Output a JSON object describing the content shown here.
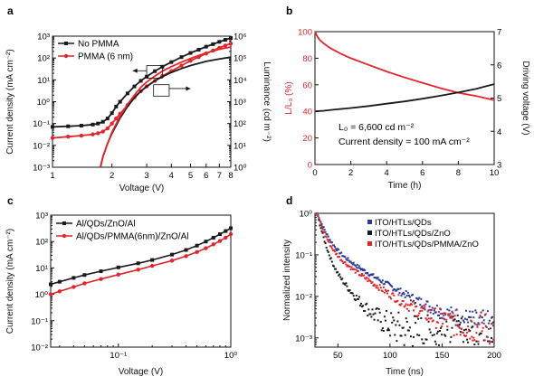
{
  "colors": {
    "black": "#1a1a1a",
    "red": "#e0262b",
    "blue": "#2b3a9a"
  },
  "chart_data": [
    {
      "id": "a",
      "panel_label": "a",
      "type": "line",
      "xlabel": "Voltage (V)",
      "xscale": "log",
      "xlim": [
        1,
        8
      ],
      "x_ticks": [
        "1",
        "2",
        "3",
        "4",
        "5",
        "6",
        "7",
        "8"
      ],
      "ylabel": "Current density (mA cm⁻²)",
      "yscale": "log",
      "ylim": [
        0.001,
        1000
      ],
      "y_ticks": [
        "10⁻³",
        "10⁻²",
        "10⁻¹",
        "10⁰",
        "10¹",
        "10²",
        "10³"
      ],
      "y2label": "Luminance (cd m⁻²)",
      "y2scale": "log",
      "y2lim": [
        1,
        1000000
      ],
      "y2_ticks": [
        "10⁰",
        "10¹",
        "10²",
        "10³",
        "10⁴",
        "10⁵",
        "10⁶"
      ],
      "legend_position": "top-left",
      "series": [
        {
          "name": "No PMMA",
          "color": "#1a1a1a",
          "marker": "square",
          "axis": "left",
          "x": [
            1.0,
            1.2,
            1.4,
            1.6,
            1.7,
            1.8,
            1.9,
            2.0,
            2.1,
            2.2,
            2.4,
            2.6,
            2.8,
            3.0,
            3.3,
            3.6,
            4.0,
            4.5,
            5.0,
            5.5,
            6.0,
            6.5,
            7.0,
            7.5,
            8.0
          ],
          "y": [
            0.07,
            0.075,
            0.08,
            0.09,
            0.1,
            0.12,
            0.17,
            0.3,
            0.6,
            1.0,
            2.4,
            5.0,
            9.0,
            14,
            25,
            40,
            65,
            110,
            170,
            240,
            330,
            430,
            550,
            680,
            820
          ]
        },
        {
          "name": "PMMA (6 nm)",
          "color": "#e0262b",
          "marker": "circle",
          "axis": "left",
          "x": [
            1.0,
            1.2,
            1.4,
            1.6,
            1.7,
            1.8,
            1.9,
            2.0,
            2.1,
            2.2,
            2.4,
            2.6,
            2.8,
            3.0,
            3.3,
            3.6,
            4.0,
            4.5,
            5.0,
            5.5,
            6.0,
            6.5,
            7.0,
            7.5,
            8.0
          ],
          "y": [
            0.022,
            0.025,
            0.028,
            0.032,
            0.036,
            0.043,
            0.06,
            0.1,
            0.17,
            0.28,
            0.7,
            1.6,
            3.0,
            5.0,
            9.0,
            15,
            25,
            45,
            75,
            110,
            160,
            220,
            290,
            370,
            460
          ]
        },
        {
          "name": "No PMMA luminance",
          "color": "#1a1a1a",
          "marker": "none",
          "axis": "right",
          "x": [
            1.75,
            1.8,
            1.9,
            2.0,
            2.2,
            2.4,
            2.6,
            2.8,
            3.0,
            3.3,
            3.6,
            4.0,
            4.5,
            5.0,
            5.5,
            6.0,
            7.0,
            8.0
          ],
          "y": [
            1,
            3,
            12,
            35,
            180,
            600,
            1500,
            3000,
            5000,
            9000,
            14000,
            22000,
            33000,
            45000,
            57000,
            70000,
            90000,
            110000
          ]
        },
        {
          "name": "PMMA (6 nm) luminance",
          "color": "#e0262b",
          "marker": "none",
          "axis": "right",
          "x": [
            1.75,
            1.8,
            1.9,
            2.0,
            2.2,
            2.4,
            2.6,
            2.8,
            3.0,
            3.3,
            3.6,
            4.0,
            4.5,
            5.0,
            5.5,
            6.0,
            7.0,
            8.0
          ],
          "y": [
            1,
            3,
            12,
            40,
            220,
            750,
            2000,
            4500,
            8000,
            15000,
            25000,
            40000,
            65000,
            95000,
            130000,
            170000,
            250000,
            320000
          ]
        }
      ],
      "annotations": [
        {
          "type": "box",
          "x": [
            3.0,
            3.6
          ],
          "y": [
            12,
            45
          ]
        },
        {
          "type": "box",
          "x": [
            3.25,
            3.9
          ],
          "y": [
            1.8,
            6.0
          ]
        },
        {
          "type": "arrow",
          "from": [
            3.0,
            26
          ],
          "to": [
            2.55,
            26
          ],
          "direction": "left"
        },
        {
          "type": "arrow",
          "from": [
            3.9,
            4.0
          ],
          "to": [
            5.0,
            4.0
          ],
          "direction": "right"
        }
      ]
    },
    {
      "id": "b",
      "panel_label": "b",
      "type": "line",
      "xlabel": "Time (h)",
      "xlim": [
        0,
        10
      ],
      "x_ticks": [
        "0",
        "2",
        "4",
        "6",
        "8",
        "10"
      ],
      "ylabel": "L/L₀ (%)",
      "ylim": [
        0,
        100
      ],
      "y_ticks": [
        "0",
        "20",
        "40",
        "60",
        "80",
        "100"
      ],
      "y2label": "Driving voltage (V)",
      "y2lim": [
        3,
        7
      ],
      "y2_ticks": [
        "3",
        "4",
        "5",
        "6",
        "7"
      ],
      "text_lines": [
        "L₀ = 6,600 cd m⁻²",
        "Current density = 100 mA cm⁻²"
      ],
      "series": [
        {
          "color": "#e0262b",
          "axis": "left",
          "x": [
            0,
            0.1,
            0.25,
            0.5,
            0.75,
            1,
            1.5,
            2,
            3,
            4,
            5,
            6,
            7,
            8,
            9,
            10
          ],
          "y": [
            100,
            97,
            94,
            91,
            88.5,
            86.5,
            83,
            80,
            75,
            70,
            65.5,
            61.5,
            57.5,
            54,
            51.5,
            48.5
          ]
        },
        {
          "color": "#1a1a1a",
          "axis": "right",
          "x": [
            0,
            0.5,
            1,
            2,
            3,
            4,
            5,
            6,
            7,
            8,
            9,
            9.5,
            10
          ],
          "y": [
            4.6,
            4.62,
            4.65,
            4.7,
            4.76,
            4.83,
            4.9,
            4.98,
            5.07,
            5.17,
            5.28,
            5.35,
            5.42
          ]
        }
      ]
    },
    {
      "id": "c",
      "panel_label": "c",
      "type": "line",
      "xlabel": "Voltage (V)",
      "xscale": "log",
      "xlim": [
        0.025,
        1
      ],
      "x_ticks": [
        "10⁻¹",
        "10⁰"
      ],
      "ylabel": "Current density (mA cm⁻²)",
      "yscale": "log",
      "ylim": [
        0.01,
        1000
      ],
      "y_ticks": [
        "10⁻²",
        "10⁻¹",
        "10⁰",
        "10¹",
        "10²",
        "10³"
      ],
      "legend_position": "top-left",
      "series": [
        {
          "name": "Al/QDs/ZnO/Al",
          "color": "#1a1a1a",
          "marker": "square",
          "x": [
            0.025,
            0.03,
            0.04,
            0.05,
            0.07,
            0.1,
            0.15,
            0.2,
            0.3,
            0.4,
            0.5,
            0.6,
            0.7,
            0.8,
            0.9,
            1.0
          ],
          "y": [
            2.4,
            3.0,
            4.2,
            5.4,
            7.5,
            10.5,
            15,
            20,
            32,
            48,
            70,
            100,
            140,
            190,
            250,
            320
          ]
        },
        {
          "name": "Al/QDs/PMMA(6nm)/ZnO/Al",
          "color": "#e0262b",
          "marker": "circle",
          "x": [
            0.025,
            0.03,
            0.04,
            0.05,
            0.07,
            0.1,
            0.15,
            0.2,
            0.3,
            0.4,
            0.5,
            0.6,
            0.7,
            0.8,
            0.9,
            1.0
          ],
          "y": [
            1.0,
            1.3,
            1.9,
            2.6,
            3.8,
            5.6,
            8.6,
            12,
            19,
            28,
            40,
            56,
            78,
            105,
            140,
            190
          ]
        }
      ]
    },
    {
      "id": "d",
      "panel_label": "d",
      "type": "scatter",
      "xlabel": "Time (ns)",
      "xlim": [
        28,
        200
      ],
      "x_ticks": [
        "50",
        "100",
        "150",
        "200"
      ],
      "ylabel": "Normalized intensity",
      "yscale": "log",
      "ylim": [
        0.0006,
        1
      ],
      "y_ticks": [
        "10⁻³",
        "10⁻²",
        "10⁻¹",
        "10⁰"
      ],
      "legend_position": "top-right",
      "series": [
        {
          "name": "ITO/HTLs/QDs",
          "color": "#2b3a9a",
          "t0": 30,
          "tau1": 6,
          "a2": 0.2,
          "tau2": 28,
          "floor": 0.0015
        },
        {
          "name": "ITO/HTLs/QDs/ZnO",
          "color": "#1a1a1a",
          "t0": 30,
          "tau1": 4,
          "a2": 0.12,
          "tau2": 14,
          "floor": 0.0012
        },
        {
          "name": "ITO/HTLs/QDs/PMMA/ZnO",
          "color": "#e0262b",
          "t0": 30,
          "tau1": 5,
          "a2": 0.18,
          "tau2": 24,
          "floor": 0.0015
        }
      ]
    }
  ]
}
